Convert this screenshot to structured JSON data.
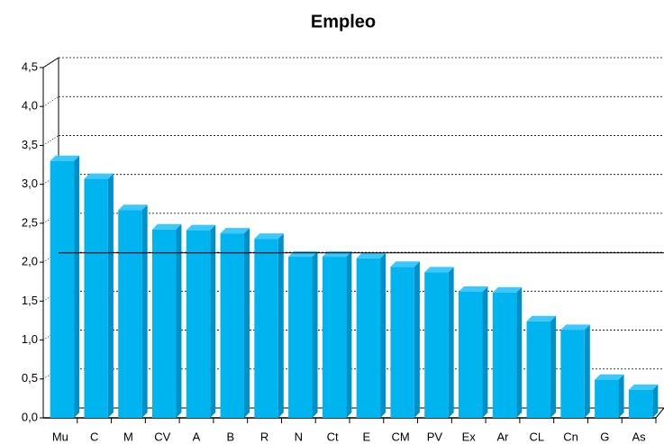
{
  "chart_data": {
    "type": "bar",
    "title": "Empleo",
    "categories": [
      "Mu",
      "C",
      "M",
      "CV",
      "A",
      "B",
      "R",
      "N",
      "Ct",
      "E",
      "CM",
      "PV",
      "Ex",
      "Ar",
      "CL",
      "Cn",
      "G",
      "As"
    ],
    "values": [
      3.3,
      3.07,
      2.67,
      2.42,
      2.41,
      2.37,
      2.3,
      2.07,
      2.07,
      2.05,
      1.94,
      1.87,
      1.62,
      1.61,
      1.24,
      1.13,
      0.49,
      0.36
    ],
    "color": "#00b4f0",
    "hline": 2.12,
    "ylim": [
      0,
      4.5
    ],
    "yticks": [
      {
        "value": 0,
        "label": "0,0"
      },
      {
        "value": 0.5,
        "label": "0,5"
      },
      {
        "value": 1,
        "label": "1,0"
      },
      {
        "value": 1.5,
        "label": "1,5"
      },
      {
        "value": 2,
        "label": "2,0"
      },
      {
        "value": 2.5,
        "label": "2,5"
      },
      {
        "value": 3,
        "label": "3,0"
      },
      {
        "value": 3.5,
        "label": "3,5"
      },
      {
        "value": 4,
        "label": "4,0"
      },
      {
        "value": 4.5,
        "label": "4,5"
      }
    ],
    "grid": true
  }
}
